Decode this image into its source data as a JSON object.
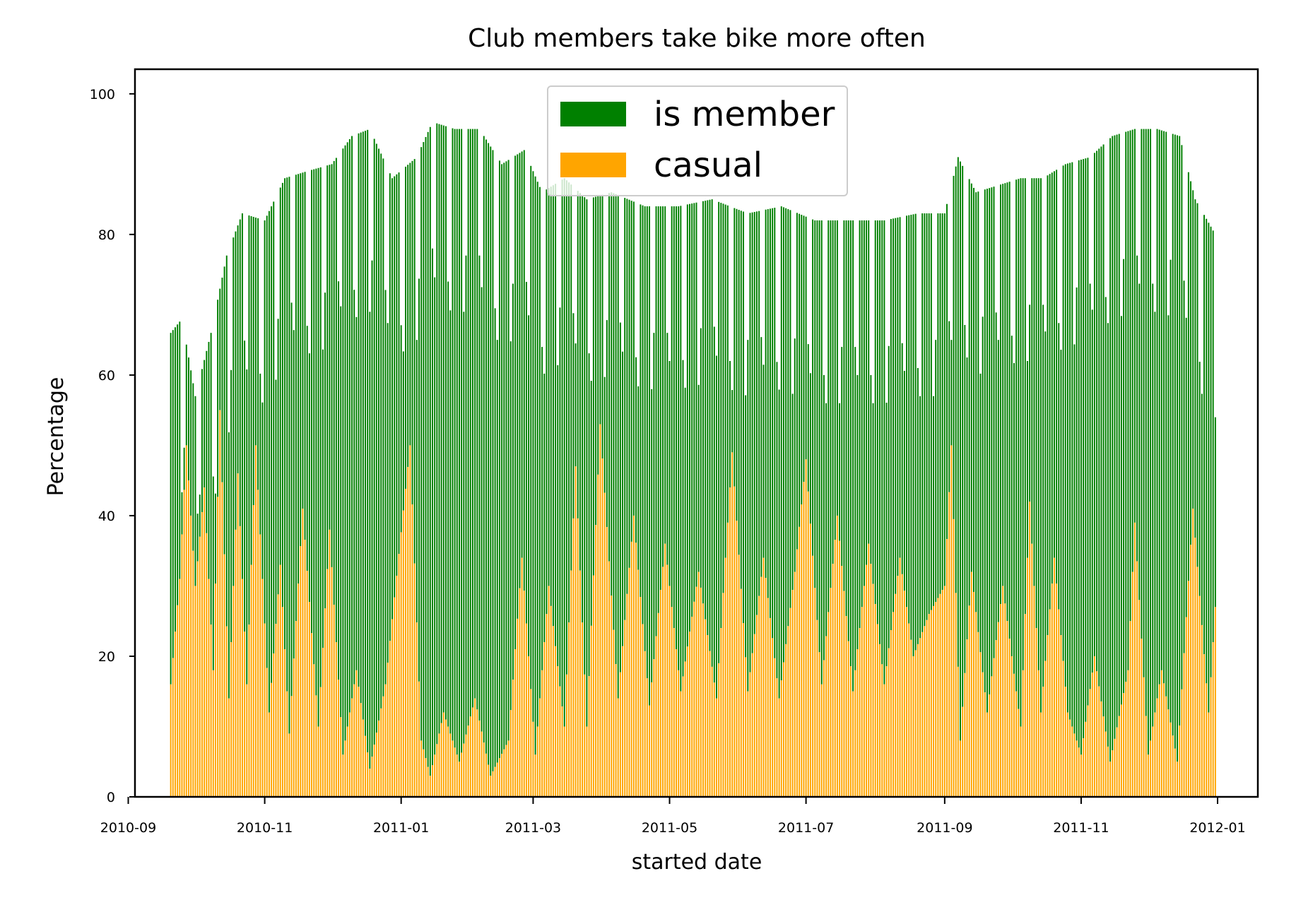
{
  "chart_data": {
    "type": "bar",
    "stacked": true,
    "title": "Club members take bike more often",
    "xlabel": "started date",
    "ylabel": "Percentage",
    "ylim": [
      0,
      103.5
    ],
    "xlim": [
      "2010-09-04",
      "2012-01-19"
    ],
    "x_range": [
      "2010-09-20",
      "2011-12-31"
    ],
    "x_ticks": [
      "2010-09",
      "2010-11",
      "2011-01",
      "2011-03",
      "2011-05",
      "2011-07",
      "2011-09",
      "2011-11",
      "2012-01"
    ],
    "y_ticks": [
      0,
      20,
      40,
      60,
      80,
      100
    ],
    "legend_position": "top-center",
    "grid": false,
    "series": [
      {
        "name": "is member",
        "color": "#008000",
        "role": "total_height"
      },
      {
        "name": "casual",
        "color": "#FFA500",
        "role": "bottom_height"
      }
    ],
    "casual_anchor_points": [
      [
        "2010-09-20",
        16
      ],
      [
        "2010-09-24",
        31
      ],
      [
        "2010-09-27",
        50
      ],
      [
        "2010-10-01",
        30
      ],
      [
        "2010-10-05",
        44
      ],
      [
        "2010-10-09",
        18
      ],
      [
        "2010-10-12",
        55
      ],
      [
        "2010-10-16",
        14
      ],
      [
        "2010-10-20",
        46
      ],
      [
        "2010-10-24",
        16
      ],
      [
        "2010-10-28",
        50
      ],
      [
        "2010-11-03",
        12
      ],
      [
        "2010-11-08",
        33
      ],
      [
        "2010-11-12",
        9
      ],
      [
        "2010-11-18",
        41
      ],
      [
        "2010-11-25",
        10
      ],
      [
        "2010-11-30",
        38
      ],
      [
        "2010-12-06",
        6
      ],
      [
        "2010-12-12",
        18
      ],
      [
        "2010-12-18",
        4
      ],
      [
        "2010-12-25",
        16
      ],
      [
        "2011-01-05",
        50
      ],
      [
        "2011-01-10",
        8
      ],
      [
        "2011-01-14",
        3
      ],
      [
        "2011-01-20",
        12
      ],
      [
        "2011-01-27",
        5
      ],
      [
        "2011-02-03",
        14
      ],
      [
        "2011-02-10",
        3
      ],
      [
        "2011-02-18",
        8
      ],
      [
        "2011-02-24",
        34
      ],
      [
        "2011-03-02",
        6
      ],
      [
        "2011-03-08",
        30
      ],
      [
        "2011-03-15",
        10
      ],
      [
        "2011-03-20",
        47
      ],
      [
        "2011-03-25",
        10
      ],
      [
        "2011-03-31",
        53
      ],
      [
        "2011-04-08",
        14
      ],
      [
        "2011-04-15",
        40
      ],
      [
        "2011-04-22",
        13
      ],
      [
        "2011-04-29",
        36
      ],
      [
        "2011-05-06",
        15
      ],
      [
        "2011-05-14",
        32
      ],
      [
        "2011-05-22",
        14
      ],
      [
        "2011-05-29",
        49
      ],
      [
        "2011-06-05",
        15
      ],
      [
        "2011-06-12",
        34
      ],
      [
        "2011-06-19",
        14
      ],
      [
        "2011-06-26",
        32
      ],
      [
        "2011-07-01",
        48
      ],
      [
        "2011-07-08",
        16
      ],
      [
        "2011-07-15",
        40
      ],
      [
        "2011-07-22",
        15
      ],
      [
        "2011-07-29",
        36
      ],
      [
        "2011-08-05",
        16
      ],
      [
        "2011-08-12",
        34
      ],
      [
        "2011-08-18",
        20
      ],
      [
        "2011-08-25",
        26
      ],
      [
        "2011-09-01",
        30
      ],
      [
        "2011-09-04",
        50
      ],
      [
        "2011-09-08",
        8
      ],
      [
        "2011-09-13",
        32
      ],
      [
        "2011-09-20",
        12
      ],
      [
        "2011-09-27",
        30
      ],
      [
        "2011-10-05",
        10
      ],
      [
        "2011-10-09",
        42
      ],
      [
        "2011-10-14",
        12
      ],
      [
        "2011-10-20",
        34
      ],
      [
        "2011-10-26",
        12
      ],
      [
        "2011-11-01",
        6
      ],
      [
        "2011-11-07",
        20
      ],
      [
        "2011-11-14",
        5
      ],
      [
        "2011-11-22",
        18
      ],
      [
        "2011-11-25",
        39
      ],
      [
        "2011-12-01",
        6
      ],
      [
        "2011-12-07",
        18
      ],
      [
        "2011-12-14",
        5
      ],
      [
        "2011-12-21",
        41
      ],
      [
        "2011-12-28",
        12
      ],
      [
        "2011-12-31",
        27
      ]
    ],
    "member_total_anchor_points": [
      [
        "2010-09-20",
        66
      ],
      [
        "2010-09-25",
        68
      ],
      [
        "2010-10-01",
        57
      ],
      [
        "2010-10-08",
        66
      ],
      [
        "2010-10-15",
        77
      ],
      [
        "2010-10-22",
        83
      ],
      [
        "2010-11-01",
        82
      ],
      [
        "2010-11-10",
        88
      ],
      [
        "2010-11-20",
        89
      ],
      [
        "2010-12-01",
        90
      ],
      [
        "2010-12-10",
        94
      ],
      [
        "2010-12-18",
        95
      ],
      [
        "2010-12-28",
        88
      ],
      [
        "2011-01-08",
        91
      ],
      [
        "2011-01-15",
        96
      ],
      [
        "2011-01-25",
        95
      ],
      [
        "2011-02-05",
        95
      ],
      [
        "2011-02-15",
        90
      ],
      [
        "2011-02-25",
        92
      ],
      [
        "2011-03-05",
        86
      ],
      [
        "2011-03-15",
        88
      ],
      [
        "2011-03-25",
        85
      ],
      [
        "2011-04-05",
        86
      ],
      [
        "2011-04-20",
        84
      ],
      [
        "2011-05-05",
        84
      ],
      [
        "2011-05-20",
        85
      ],
      [
        "2011-06-05",
        83
      ],
      [
        "2011-06-20",
        84
      ],
      [
        "2011-07-05",
        82
      ],
      [
        "2011-07-20",
        82
      ],
      [
        "2011-08-05",
        82
      ],
      [
        "2011-08-20",
        83
      ],
      [
        "2011-09-01",
        83
      ],
      [
        "2011-09-07",
        91
      ],
      [
        "2011-09-15",
        86
      ],
      [
        "2011-09-25",
        87
      ],
      [
        "2011-10-05",
        88
      ],
      [
        "2011-10-15",
        88
      ],
      [
        "2011-10-25",
        90
      ],
      [
        "2011-11-05",
        91
      ],
      [
        "2011-11-15",
        94
      ],
      [
        "2011-11-25",
        95
      ],
      [
        "2011-12-05",
        95
      ],
      [
        "2011-12-15",
        94
      ],
      [
        "2011-12-22",
        85
      ],
      [
        "2011-12-31",
        80
      ]
    ]
  }
}
